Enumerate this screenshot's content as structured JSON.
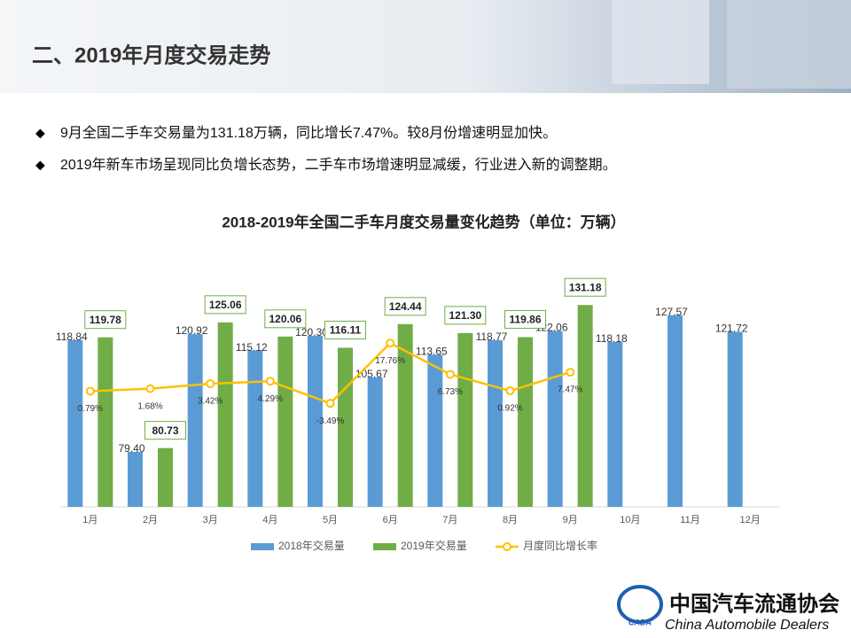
{
  "header": {
    "title": "二、2019年月度交易走势"
  },
  "bullets": [
    "9月全国二手车交易量为131.18万辆，同比增长7.47%。较8月份增速明显加快。",
    "2019年新车市场呈现同比负增长态势，二手车市场增速明显减缓，行业进入新的调整期。"
  ],
  "chart_data": {
    "type": "bar",
    "title": "2018-2019年全国二手车月度交易量变化趋势（单位：万辆）",
    "categories": [
      "1月",
      "2月",
      "3月",
      "4月",
      "5月",
      "6月",
      "7月",
      "8月",
      "9月",
      "10月",
      "11月",
      "12月"
    ],
    "series": [
      {
        "name": "2018年交易量",
        "color": "#5b9bd5",
        "values": [
          118.84,
          79.4,
          120.92,
          115.12,
          120.3,
          105.67,
          113.65,
          118.77,
          122.06,
          118.18,
          127.57,
          121.72
        ],
        "value_labels": [
          "118.84",
          "79.40",
          "120.92",
          "115.12",
          "120.30",
          "105.67",
          "113.65",
          "118.77",
          "122.06",
          "118.18",
          "127.57",
          "121.72"
        ]
      },
      {
        "name": "2019年交易量",
        "color": "#70ad47",
        "values": [
          119.78,
          80.73,
          125.06,
          120.06,
          116.11,
          124.44,
          121.3,
          119.86,
          131.18,
          null,
          null,
          null
        ],
        "value_labels": [
          "119.78",
          "80.73",
          "125.06",
          "120.06",
          "116.11",
          "124.44",
          "121.30",
          "119.86",
          "131.18",
          null,
          null,
          null
        ]
      },
      {
        "name": "月度同比增长率",
        "color": "#ffc000",
        "type": "line",
        "axis": "y2",
        "values": [
          0.79,
          1.68,
          3.42,
          4.29,
          -3.49,
          17.76,
          6.73,
          0.92,
          7.47,
          null,
          null,
          null
        ],
        "value_labels": [
          "0.79%",
          "1.68%",
          "3.42%",
          "4.29%",
          "-3.49%",
          "17.76%",
          "6.73%",
          "0.92%",
          "7.47%",
          null,
          null,
          null
        ]
      }
    ],
    "ylim": [
      60,
      145
    ],
    "y2lim": [
      -40,
      45
    ],
    "legend": "bottom"
  },
  "logo": {
    "mark": "CADA",
    "name": "中国汽车流通协会",
    "english": "China Automobile Dealers"
  }
}
